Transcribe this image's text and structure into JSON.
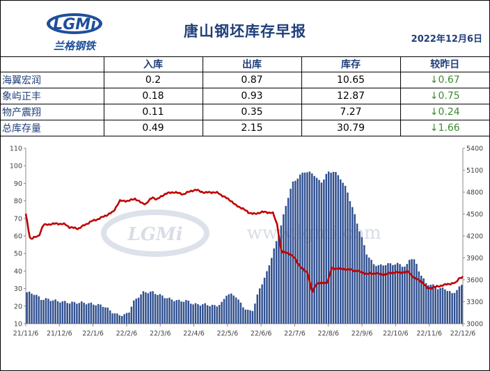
{
  "header": {
    "logo_text": "LGMi",
    "logo_sub": "兰格钢铁",
    "title": "唐山钢坯库存早报",
    "date": "2022年12月6日"
  },
  "table": {
    "columns": [
      "",
      "入库",
      "出库",
      "库存",
      "较昨日"
    ],
    "rows": [
      {
        "name": "海翼宏润",
        "in": "0.2",
        "out": "0.87",
        "stock": "10.65",
        "change": "↓0.67"
      },
      {
        "name": "象屿正丰",
        "in": "0.18",
        "out": "0.93",
        "stock": "12.87",
        "change": "↓0.75"
      },
      {
        "name": "物产震翔",
        "in": "0.11",
        "out": "0.35",
        "stock": "7.27",
        "change": "↓0.24"
      },
      {
        "name": "总库存量",
        "in": "0.49",
        "out": "2.15",
        "stock": "30.79",
        "change": "↓1.66"
      }
    ]
  },
  "chart_data": {
    "type": "bar+line",
    "watermark": "www.lgmi.com",
    "x_tick_labels": [
      "21/11/6",
      "21/12/6",
      "22/1/6",
      "22/2/6",
      "22/3/6",
      "22/4/6",
      "22/5/6",
      "22/6/6",
      "22/7/6",
      "22/8/6",
      "22/9/6",
      "22/10/6",
      "22/11/6",
      "22/12/6"
    ],
    "y_left": {
      "min": 10,
      "max": 110,
      "ticks": [
        10,
        20,
        30,
        40,
        50,
        60,
        70,
        80,
        90,
        100,
        110
      ]
    },
    "y_right": {
      "min": 3000,
      "max": 5400,
      "ticks": [
        3000,
        3300,
        3600,
        3900,
        4200,
        4500,
        4800,
        5100,
        5400
      ]
    },
    "colors": {
      "bars": "#2f4f8f",
      "line": "#c00000"
    },
    "bar_series_axis": "left",
    "line_series_axis": "right",
    "bar_anchors": [
      {
        "t": 0,
        "v": 28
      },
      {
        "t": 0.02,
        "v": 27
      },
      {
        "t": 0.035,
        "v": 24
      },
      {
        "t": 0.05,
        "v": 24
      },
      {
        "t": 0.07,
        "v": 23
      },
      {
        "t": 0.1,
        "v": 22
      },
      {
        "t": 0.13,
        "v": 22
      },
      {
        "t": 0.16,
        "v": 21
      },
      {
        "t": 0.18,
        "v": 20
      },
      {
        "t": 0.195,
        "v": 17
      },
      {
        "t": 0.21,
        "v": 15
      },
      {
        "t": 0.225,
        "v": 15
      },
      {
        "t": 0.235,
        "v": 16
      },
      {
        "t": 0.245,
        "v": 22
      },
      {
        "t": 0.26,
        "v": 26
      },
      {
        "t": 0.27,
        "v": 28
      },
      {
        "t": 0.29,
        "v": 28
      },
      {
        "t": 0.31,
        "v": 26
      },
      {
        "t": 0.33,
        "v": 24
      },
      {
        "t": 0.35,
        "v": 23
      },
      {
        "t": 0.37,
        "v": 23
      },
      {
        "t": 0.385,
        "v": 21
      },
      {
        "t": 0.41,
        "v": 21
      },
      {
        "t": 0.435,
        "v": 20
      },
      {
        "t": 0.45,
        "v": 22
      },
      {
        "t": 0.46,
        "v": 27
      },
      {
        "t": 0.48,
        "v": 26
      },
      {
        "t": 0.49,
        "v": 22
      },
      {
        "t": 0.5,
        "v": 19
      },
      {
        "t": 0.51,
        "v": 17
      },
      {
        "t": 0.52,
        "v": 18
      },
      {
        "t": 0.535,
        "v": 30
      },
      {
        "t": 0.55,
        "v": 38
      },
      {
        "t": 0.565,
        "v": 50
      },
      {
        "t": 0.58,
        "v": 62
      },
      {
        "t": 0.59,
        "v": 72
      },
      {
        "t": 0.6,
        "v": 82
      },
      {
        "t": 0.61,
        "v": 90
      },
      {
        "t": 0.625,
        "v": 94
      },
      {
        "t": 0.64,
        "v": 97
      },
      {
        "t": 0.66,
        "v": 95
      },
      {
        "t": 0.675,
        "v": 90
      },
      {
        "t": 0.69,
        "v": 96
      },
      {
        "t": 0.705,
        "v": 97
      },
      {
        "t": 0.72,
        "v": 93
      },
      {
        "t": 0.735,
        "v": 86
      },
      {
        "t": 0.75,
        "v": 74
      },
      {
        "t": 0.765,
        "v": 62
      },
      {
        "t": 0.78,
        "v": 50
      },
      {
        "t": 0.795,
        "v": 44
      },
      {
        "t": 0.81,
        "v": 43
      },
      {
        "t": 0.825,
        "v": 44
      },
      {
        "t": 0.84,
        "v": 44
      },
      {
        "t": 0.855,
        "v": 44
      },
      {
        "t": 0.87,
        "v": 42
      },
      {
        "t": 0.88,
        "v": 48
      },
      {
        "t": 0.89,
        "v": 46
      },
      {
        "t": 0.9,
        "v": 40
      },
      {
        "t": 0.915,
        "v": 33
      },
      {
        "t": 0.93,
        "v": 32
      },
      {
        "t": 0.945,
        "v": 30
      },
      {
        "t": 0.96,
        "v": 30
      },
      {
        "t": 0.975,
        "v": 27
      },
      {
        "t": 0.99,
        "v": 30
      },
      {
        "t": 1,
        "v": 33
      }
    ],
    "line_anchors": [
      {
        "t": 0,
        "v": 4500
      },
      {
        "t": 0.01,
        "v": 4160
      },
      {
        "t": 0.03,
        "v": 4200
      },
      {
        "t": 0.04,
        "v": 4350
      },
      {
        "t": 0.07,
        "v": 4370
      },
      {
        "t": 0.09,
        "v": 4360
      },
      {
        "t": 0.1,
        "v": 4320
      },
      {
        "t": 0.12,
        "v": 4300
      },
      {
        "t": 0.15,
        "v": 4400
      },
      {
        "t": 0.165,
        "v": 4430
      },
      {
        "t": 0.18,
        "v": 4470
      },
      {
        "t": 0.2,
        "v": 4530
      },
      {
        "t": 0.215,
        "v": 4680
      },
      {
        "t": 0.235,
        "v": 4680
      },
      {
        "t": 0.25,
        "v": 4710
      },
      {
        "t": 0.265,
        "v": 4650
      },
      {
        "t": 0.275,
        "v": 4640
      },
      {
        "t": 0.29,
        "v": 4730
      },
      {
        "t": 0.3,
        "v": 4700
      },
      {
        "t": 0.32,
        "v": 4780
      },
      {
        "t": 0.34,
        "v": 4800
      },
      {
        "t": 0.36,
        "v": 4770
      },
      {
        "t": 0.38,
        "v": 4820
      },
      {
        "t": 0.39,
        "v": 4830
      },
      {
        "t": 0.41,
        "v": 4790
      },
      {
        "t": 0.42,
        "v": 4800
      },
      {
        "t": 0.44,
        "v": 4790
      },
      {
        "t": 0.45,
        "v": 4750
      },
      {
        "t": 0.47,
        "v": 4680
      },
      {
        "t": 0.48,
        "v": 4620
      },
      {
        "t": 0.495,
        "v": 4580
      },
      {
        "t": 0.51,
        "v": 4520
      },
      {
        "t": 0.525,
        "v": 4500
      },
      {
        "t": 0.54,
        "v": 4530
      },
      {
        "t": 0.555,
        "v": 4520
      },
      {
        "t": 0.565,
        "v": 4520
      },
      {
        "t": 0.575,
        "v": 4360
      },
      {
        "t": 0.585,
        "v": 3980
      },
      {
        "t": 0.6,
        "v": 3970
      },
      {
        "t": 0.615,
        "v": 3900
      },
      {
        "t": 0.63,
        "v": 3760
      },
      {
        "t": 0.645,
        "v": 3700
      },
      {
        "t": 0.655,
        "v": 3420
      },
      {
        "t": 0.665,
        "v": 3550
      },
      {
        "t": 0.69,
        "v": 3560
      },
      {
        "t": 0.7,
        "v": 3760
      },
      {
        "t": 0.72,
        "v": 3750
      },
      {
        "t": 0.74,
        "v": 3740
      },
      {
        "t": 0.76,
        "v": 3720
      },
      {
        "t": 0.78,
        "v": 3680
      },
      {
        "t": 0.8,
        "v": 3690
      },
      {
        "t": 0.82,
        "v": 3670
      },
      {
        "t": 0.84,
        "v": 3700
      },
      {
        "t": 0.86,
        "v": 3700
      },
      {
        "t": 0.875,
        "v": 3710
      },
      {
        "t": 0.89,
        "v": 3620
      },
      {
        "t": 0.905,
        "v": 3580
      },
      {
        "t": 0.92,
        "v": 3480
      },
      {
        "t": 0.935,
        "v": 3500
      },
      {
        "t": 0.95,
        "v": 3520
      },
      {
        "t": 0.965,
        "v": 3540
      },
      {
        "t": 0.985,
        "v": 3560
      },
      {
        "t": 0.99,
        "v": 3620
      },
      {
        "t": 1,
        "v": 3640
      }
    ]
  }
}
